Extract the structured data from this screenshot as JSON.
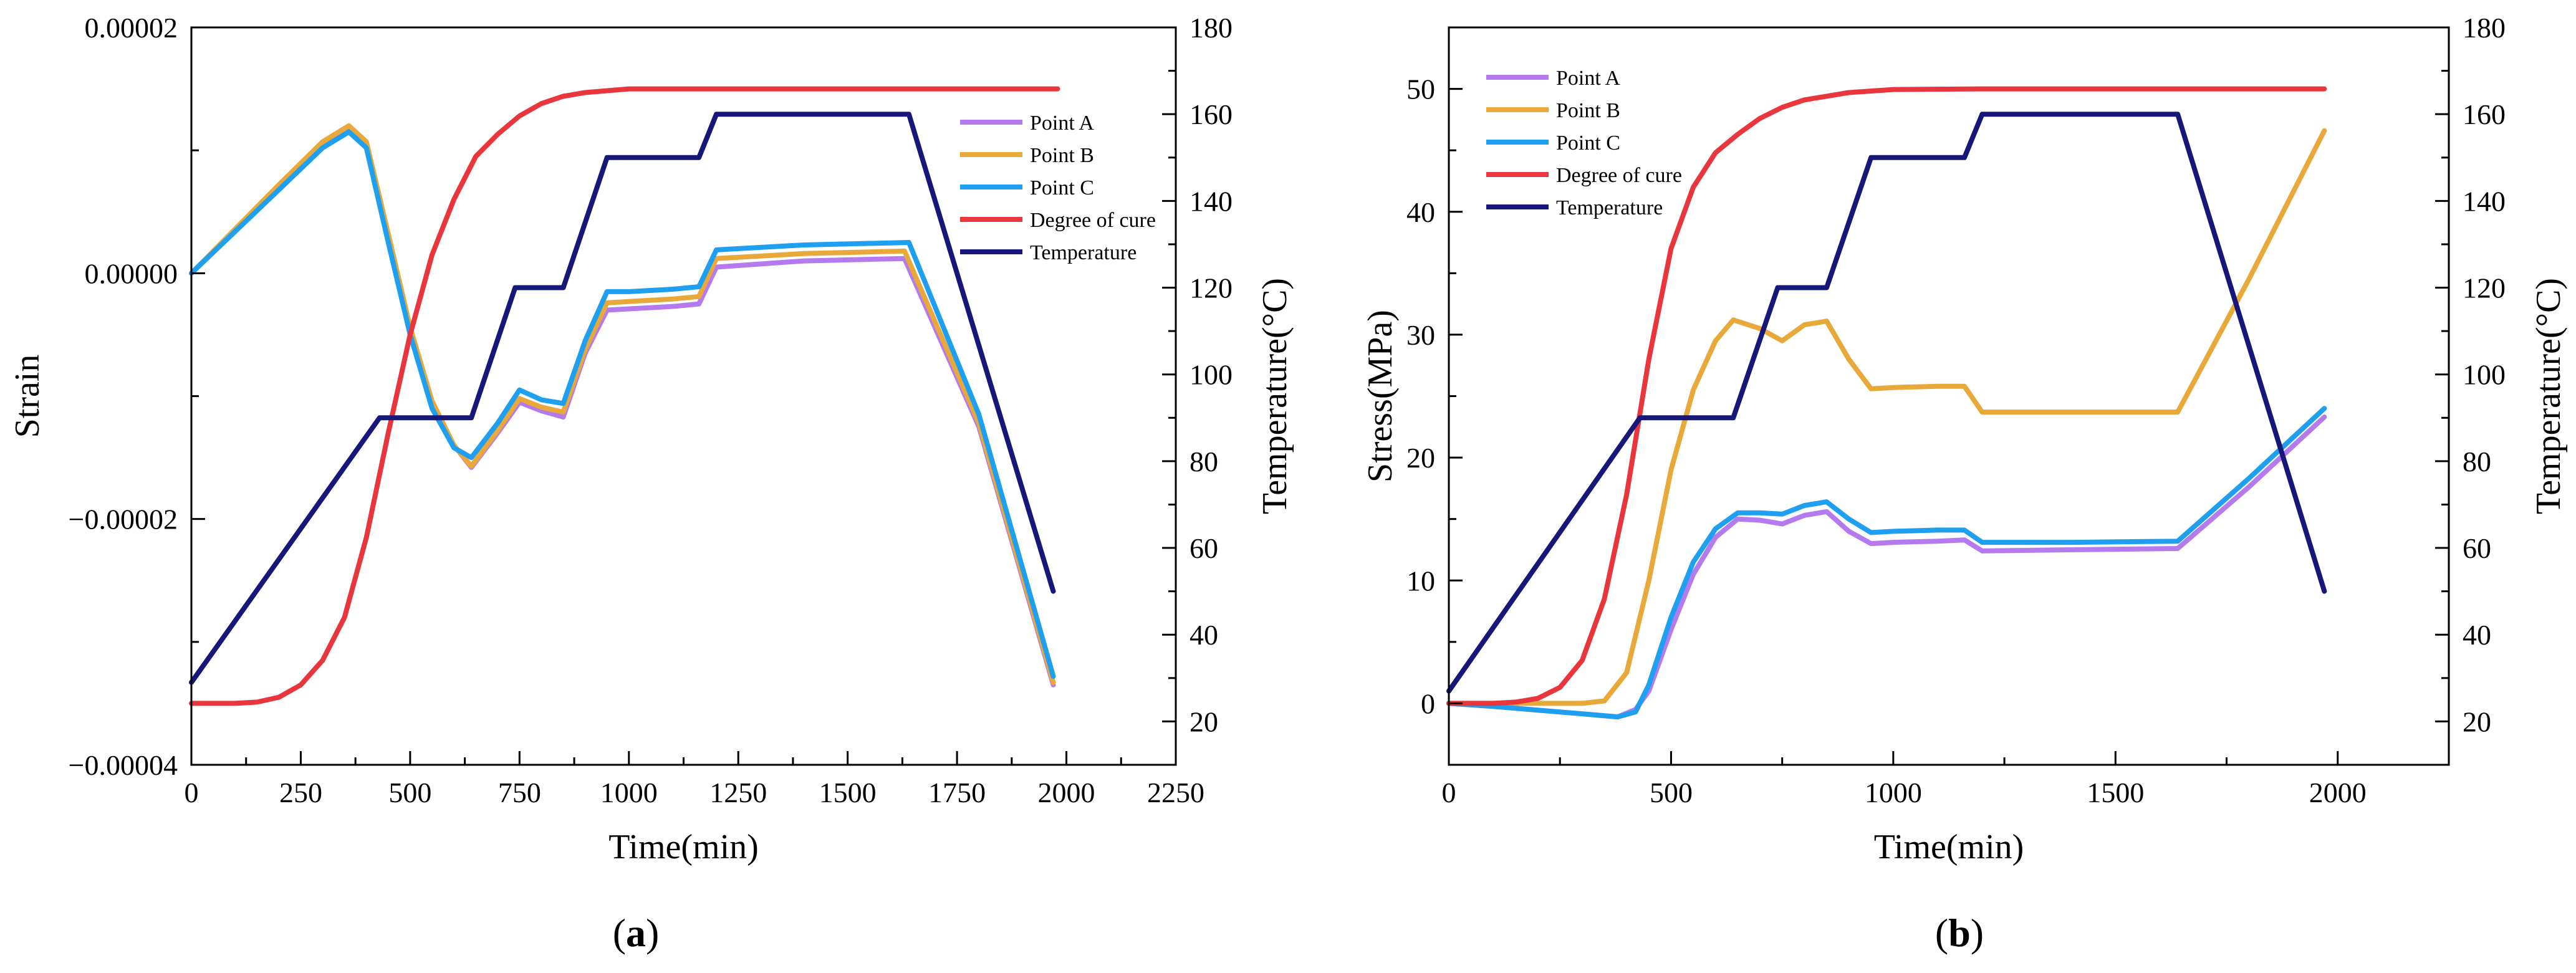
{
  "chart_data": [
    {
      "panel_label": "(a)",
      "panel_letter": "a",
      "type": "line",
      "xlabel": "Time(min)",
      "ylabel": "Strain",
      "y2label": "Temperature(°C)",
      "xlim": [
        0,
        2250
      ],
      "ylim": [
        -4e-05,
        2e-05
      ],
      "y2lim": [
        10,
        180
      ],
      "x_ticks": [
        0,
        250,
        500,
        750,
        1000,
        1250,
        1500,
        1750,
        2000,
        2250
      ],
      "x_tick_labels": [
        "0",
        "250",
        "500",
        "750",
        "1000",
        "1250",
        "1500",
        "1750",
        "2000",
        "2250"
      ],
      "y_ticks": [
        -4e-05,
        -2e-05,
        0,
        2e-05
      ],
      "y_tick_labels": [
        "−0.00004",
        "−0.00002",
        "0.00000",
        "0.00002"
      ],
      "y2_ticks": [
        20,
        40,
        60,
        80,
        100,
        120,
        140,
        160,
        180
      ],
      "y2_tick_labels": [
        "20",
        "40",
        "60",
        "80",
        "100",
        "120",
        "140",
        "160",
        "180"
      ],
      "legend_position": "right-upper",
      "series": [
        {
          "name": "Point A",
          "color": "#b57bee",
          "axis": "y",
          "points": [
            [
              0,
              0
            ],
            [
              100,
              3.5e-06
            ],
            [
              200,
              7e-06
            ],
            [
              300,
              1.05e-05
            ],
            [
              360,
              1.18e-05
            ],
            [
              400,
              1.05e-05
            ],
            [
              450,
              3e-06
            ],
            [
              500,
              -4.5e-06
            ],
            [
              550,
              -1.05e-05
            ],
            [
              600,
              -1.4e-05
            ],
            [
              640,
              -1.58e-05
            ],
            [
              700,
              -1.3e-05
            ],
            [
              750,
              -1.05e-05
            ],
            [
              800,
              -1.12e-05
            ],
            [
              850,
              -1.17e-05
            ],
            [
              900,
              -6.5e-06
            ],
            [
              950,
              -3e-06
            ],
            [
              1000,
              -2.9e-06
            ],
            [
              1100,
              -2.7e-06
            ],
            [
              1160,
              -2.5e-06
            ],
            [
              1200,
              5e-07
            ],
            [
              1400,
              1e-06
            ],
            [
              1630,
              1.2e-06
            ],
            [
              1800,
              -1.25e-05
            ],
            [
              1970,
              -3.35e-05
            ]
          ]
        },
        {
          "name": "Point B",
          "color": "#e8a93a",
          "axis": "y",
          "points": [
            [
              0,
              0
            ],
            [
              100,
              3.6e-06
            ],
            [
              200,
              7.2e-06
            ],
            [
              300,
              1.07e-05
            ],
            [
              360,
              1.2e-05
            ],
            [
              400,
              1.07e-05
            ],
            [
              450,
              3.2e-06
            ],
            [
              500,
              -4.4e-06
            ],
            [
              550,
              -1.04e-05
            ],
            [
              600,
              -1.4e-05
            ],
            [
              640,
              -1.57e-05
            ],
            [
              700,
              -1.28e-05
            ],
            [
              750,
              -1.02e-05
            ],
            [
              800,
              -1.09e-05
            ],
            [
              850,
              -1.13e-05
            ],
            [
              900,
              -6.2e-06
            ],
            [
              950,
              -2.4e-06
            ],
            [
              1000,
              -2.3e-06
            ],
            [
              1100,
              -2.1e-06
            ],
            [
              1160,
              -1.9e-06
            ],
            [
              1200,
              1.2e-06
            ],
            [
              1400,
              1.6e-06
            ],
            [
              1630,
              1.8e-06
            ],
            [
              1800,
              -1.22e-05
            ],
            [
              1970,
              -3.33e-05
            ]
          ]
        },
        {
          "name": "Point C",
          "color": "#1e9ff0",
          "axis": "y",
          "points": [
            [
              0,
              0
            ],
            [
              100,
              3.4e-06
            ],
            [
              200,
              6.8e-06
            ],
            [
              300,
              1.02e-05
            ],
            [
              360,
              1.15e-05
            ],
            [
              400,
              1.02e-05
            ],
            [
              450,
              2.5e-06
            ],
            [
              500,
              -5e-06
            ],
            [
              550,
              -1.1e-05
            ],
            [
              600,
              -1.42e-05
            ],
            [
              640,
              -1.5e-05
            ],
            [
              700,
              -1.22e-05
            ],
            [
              750,
              -9.5e-06
            ],
            [
              800,
              -1.03e-05
            ],
            [
              850,
              -1.06e-05
            ],
            [
              900,
              -5.5e-06
            ],
            [
              950,
              -1.5e-06
            ],
            [
              1000,
              -1.5e-06
            ],
            [
              1100,
              -1.3e-06
            ],
            [
              1160,
              -1.1e-06
            ],
            [
              1200,
              1.9e-06
            ],
            [
              1400,
              2.3e-06
            ],
            [
              1640,
              2.5e-06
            ],
            [
              1800,
              -1.15e-05
            ],
            [
              1970,
              -3.28e-05
            ]
          ]
        },
        {
          "name": "Degree of cure",
          "color": "#e8363c",
          "axis": "y",
          "points": [
            [
              0,
              -3.5e-05
            ],
            [
              100,
              -3.5e-05
            ],
            [
              150,
              -3.49e-05
            ],
            [
              200,
              -3.45e-05
            ],
            [
              250,
              -3.35e-05
            ],
            [
              300,
              -3.15e-05
            ],
            [
              350,
              -2.8e-05
            ],
            [
              400,
              -2.15e-05
            ],
            [
              450,
              -1.3e-05
            ],
            [
              500,
              -5e-06
            ],
            [
              550,
              1.5e-06
            ],
            [
              600,
              6e-06
            ],
            [
              650,
              9.5e-06
            ],
            [
              700,
              1.13e-05
            ],
            [
              750,
              1.28e-05
            ],
            [
              800,
              1.38e-05
            ],
            [
              850,
              1.44e-05
            ],
            [
              900,
              1.47e-05
            ],
            [
              1000,
              1.5e-05
            ],
            [
              1200,
              1.5e-05
            ],
            [
              1600,
              1.5e-05
            ],
            [
              1980,
              1.5e-05
            ]
          ]
        },
        {
          "name": "Temperature",
          "color": "#17177a",
          "axis": "y2",
          "points": [
            [
              0,
              29
            ],
            [
              430,
              90
            ],
            [
              640,
              90
            ],
            [
              740,
              120
            ],
            [
              850,
              120
            ],
            [
              950,
              150
            ],
            [
              1160,
              150
            ],
            [
              1200,
              160
            ],
            [
              1640,
              160
            ],
            [
              1970,
              50
            ]
          ]
        }
      ]
    },
    {
      "panel_label": "(b)",
      "panel_letter": "b",
      "type": "line",
      "xlabel": "Time(min)",
      "ylabel": "Stress(MPa)",
      "y2label": "Temperature(°C)",
      "xlim": [
        0,
        2250
      ],
      "ylim": [
        -5,
        55
      ],
      "y2lim": [
        10,
        180
      ],
      "x_ticks": [
        0,
        500,
        1000,
        1500,
        2000
      ],
      "x_tick_labels": [
        "0",
        "500",
        "1000",
        "1500",
        "2000"
      ],
      "y_ticks": [
        0,
        10,
        20,
        30,
        40,
        50
      ],
      "y_tick_labels": [
        "0",
        "10",
        "20",
        "30",
        "40",
        "50"
      ],
      "y2_ticks": [
        20,
        40,
        60,
        80,
        100,
        120,
        140,
        160,
        180
      ],
      "y2_tick_labels": [
        "20",
        "40",
        "60",
        "80",
        "100",
        "120",
        "140",
        "160",
        "180"
      ],
      "legend_position": "top-left",
      "series": [
        {
          "name": "Point A",
          "color": "#b57bee",
          "axis": "y",
          "points": [
            [
              0,
              0
            ],
            [
              100,
              -0.25
            ],
            [
              200,
              -0.55
            ],
            [
              300,
              -0.85
            ],
            [
              380,
              -1.1
            ],
            [
              420,
              -0.5
            ],
            [
              450,
              1
            ],
            [
              500,
              6
            ],
            [
              550,
              10.5
            ],
            [
              600,
              13.5
            ],
            [
              650,
              15
            ],
            [
              700,
              14.9
            ],
            [
              750,
              14.6
            ],
            [
              800,
              15.3
            ],
            [
              850,
              15.6
            ],
            [
              900,
              14
            ],
            [
              950,
              13
            ],
            [
              1000,
              13.1
            ],
            [
              1100,
              13.2
            ],
            [
              1160,
              13.3
            ],
            [
              1200,
              12.4
            ],
            [
              1400,
              12.5
            ],
            [
              1640,
              12.6
            ],
            [
              1800,
              17.6
            ],
            [
              1970,
              23.3
            ]
          ]
        },
        {
          "name": "Point B",
          "color": "#e8a93a",
          "axis": "y",
          "points": [
            [
              0,
              0
            ],
            [
              100,
              0
            ],
            [
              200,
              0
            ],
            [
              300,
              0
            ],
            [
              350,
              0.2
            ],
            [
              400,
              2.5
            ],
            [
              450,
              10
            ],
            [
              500,
              19
            ],
            [
              550,
              25.5
            ],
            [
              600,
              29.5
            ],
            [
              640,
              31.2
            ],
            [
              700,
              30.5
            ],
            [
              750,
              29.5
            ],
            [
              800,
              30.8
            ],
            [
              850,
              31.1
            ],
            [
              900,
              28
            ],
            [
              950,
              25.6
            ],
            [
              1000,
              25.7
            ],
            [
              1100,
              25.8
            ],
            [
              1160,
              25.8
            ],
            [
              1200,
              23.7
            ],
            [
              1400,
              23.7
            ],
            [
              1640,
              23.7
            ],
            [
              1800,
              34.5
            ],
            [
              1970,
              46.6
            ]
          ]
        },
        {
          "name": "Point C",
          "color": "#1e9ff0",
          "axis": "y",
          "points": [
            [
              0,
              0
            ],
            [
              100,
              -0.25
            ],
            [
              200,
              -0.55
            ],
            [
              300,
              -0.85
            ],
            [
              380,
              -1.1
            ],
            [
              420,
              -0.7
            ],
            [
              450,
              1.5
            ],
            [
              500,
              7
            ],
            [
              550,
              11.5
            ],
            [
              600,
              14.2
            ],
            [
              650,
              15.5
            ],
            [
              700,
              15.5
            ],
            [
              750,
              15.4
            ],
            [
              800,
              16.1
            ],
            [
              850,
              16.4
            ],
            [
              900,
              15
            ],
            [
              950,
              13.9
            ],
            [
              1000,
              14
            ],
            [
              1100,
              14.1
            ],
            [
              1160,
              14.1
            ],
            [
              1200,
              13.1
            ],
            [
              1400,
              13.1
            ],
            [
              1640,
              13.2
            ],
            [
              1800,
              18.3
            ],
            [
              1970,
              24
            ]
          ]
        },
        {
          "name": "Degree of cure",
          "color": "#e8363c",
          "axis": "y",
          "points": [
            [
              0,
              0
            ],
            [
              100,
              0
            ],
            [
              150,
              0.1
            ],
            [
              200,
              0.4
            ],
            [
              250,
              1.3
            ],
            [
              300,
              3.5
            ],
            [
              350,
              8.5
            ],
            [
              400,
              17
            ],
            [
              450,
              28
            ],
            [
              500,
              37
            ],
            [
              550,
              42
            ],
            [
              600,
              44.8
            ],
            [
              650,
              46.3
            ],
            [
              700,
              47.6
            ],
            [
              750,
              48.5
            ],
            [
              800,
              49.1
            ],
            [
              850,
              49.4
            ],
            [
              900,
              49.7
            ],
            [
              1000,
              49.95
            ],
            [
              1200,
              50
            ],
            [
              1600,
              50
            ],
            [
              1970,
              50
            ]
          ]
        },
        {
          "name": "Temperature",
          "color": "#17177a",
          "axis": "y2",
          "points": [
            [
              0,
              27
            ],
            [
              430,
              90
            ],
            [
              640,
              90
            ],
            [
              740,
              120
            ],
            [
              850,
              120
            ],
            [
              950,
              150
            ],
            [
              1160,
              150
            ],
            [
              1200,
              160
            ],
            [
              1640,
              160
            ],
            [
              1970,
              50
            ]
          ]
        }
      ]
    }
  ]
}
